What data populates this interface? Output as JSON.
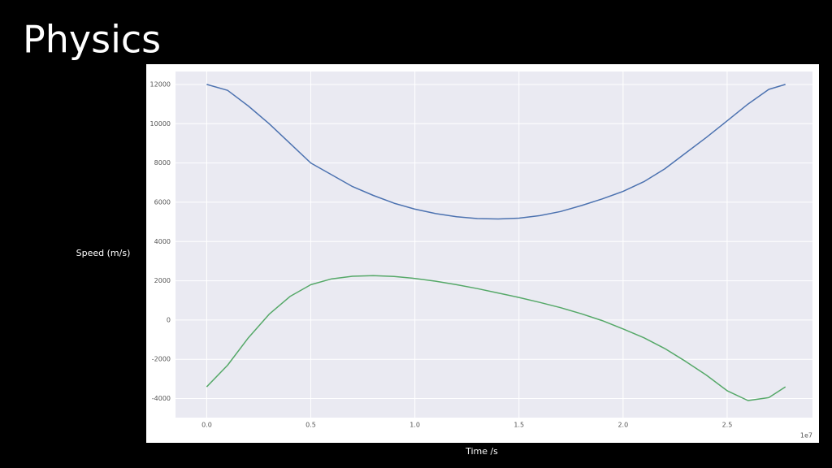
{
  "chart_data": {
    "type": "line",
    "title": "Physics",
    "xlabel": "Time /s",
    "ylabel": "Speed (m/s)",
    "x_offset_label": "1e7",
    "x": [
      0,
      0.1,
      0.2,
      0.3,
      0.4,
      0.5,
      0.6,
      0.7,
      0.8,
      0.9,
      1.0,
      1.1,
      1.2,
      1.3,
      1.4,
      1.5,
      1.6,
      1.7,
      1.8,
      1.9,
      2.0,
      2.1,
      2.2,
      2.3,
      2.4,
      2.5,
      2.6,
      2.7,
      2.78
    ],
    "series": [
      {
        "color": "#4c72b0",
        "values": [
          12000,
          11700,
          10900,
          10000,
          9000,
          8000,
          7400,
          6800,
          6350,
          5950,
          5650,
          5420,
          5260,
          5170,
          5150,
          5190,
          5320,
          5530,
          5830,
          6170,
          6550,
          7050,
          7700,
          8500,
          9300,
          10150,
          11000,
          11750,
          12000
        ]
      },
      {
        "color": "#55a868",
        "values": [
          -3400,
          -2300,
          -900,
          300,
          1200,
          1800,
          2100,
          2230,
          2260,
          2220,
          2120,
          1980,
          1800,
          1600,
          1380,
          1150,
          900,
          630,
          320,
          -30,
          -450,
          -900,
          -1450,
          -2100,
          -2800,
          -3600,
          -4100,
          -3950,
          -3400
        ]
      }
    ],
    "xlim": [
      -0.15,
      2.91
    ],
    "ylim": [
      -4970,
      12660
    ],
    "xticks": [
      {
        "value": 0,
        "label": "0.0"
      },
      0.5,
      {
        "value": 1,
        "label": "1.0"
      },
      1.5,
      {
        "value": 2,
        "label": "2.0"
      },
      2.5
    ],
    "yticks": [
      -4000,
      -2000,
      0,
      2000,
      4000,
      6000,
      8000,
      10000,
      12000
    ],
    "grid": true
  }
}
